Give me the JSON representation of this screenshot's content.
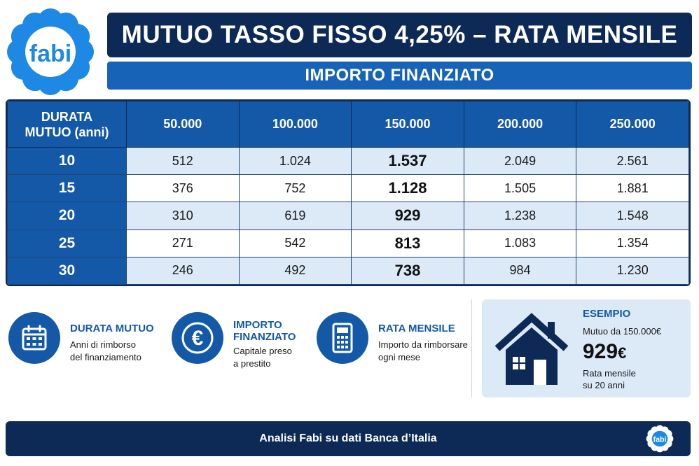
{
  "logo": {
    "text": "fabi",
    "icon": "fabi-flower-logo",
    "color": "#1e88e5"
  },
  "title": "MUTUO TASSO FISSO 4,25% – RATA MENSILE",
  "subtitle": "IMPORTO FINANZIATO",
  "table": {
    "corner_line1": "DURATA",
    "corner_line2": "MUTUO (anni)",
    "columns": [
      "50.000",
      "100.000",
      "150.000",
      "200.000",
      "250.000"
    ],
    "rows": [
      {
        "durata": "10",
        "values": [
          "512",
          "1.024",
          "1.537",
          "2.049",
          "2.561"
        ]
      },
      {
        "durata": "15",
        "values": [
          "376",
          "752",
          "1.128",
          "1.505",
          "1.881"
        ]
      },
      {
        "durata": "20",
        "values": [
          "310",
          "619",
          "929",
          "1.238",
          "1.548"
        ]
      },
      {
        "durata": "25",
        "values": [
          "271",
          "542",
          "813",
          "1.083",
          "1.354"
        ]
      },
      {
        "durata": "30",
        "values": [
          "246",
          "492",
          "738",
          "984",
          "1.230"
        ]
      }
    ],
    "highlight_column": "150.000"
  },
  "legend": [
    {
      "icon": "calendar-icon",
      "title": "DURATA MUTUO",
      "desc_line1": "Anni di rimborso",
      "desc_line2": "del finanziamento"
    },
    {
      "icon": "euro-icon",
      "title_line1": "IMPORTO",
      "title_line2": "FINANZIATO",
      "desc_line1": "Capitale preso",
      "desc_line2": "a prestito"
    },
    {
      "icon": "calculator-icon",
      "title": "RATA MENSILE",
      "desc_line1": "Importo da rimborsare",
      "desc_line2": "ogni mese"
    }
  ],
  "example": {
    "icon": "house-icon",
    "title": "ESEMPIO",
    "line": "Mutuo da 150.000€",
    "amount": "929",
    "currency": "€",
    "caption_line1": "Rata mensile",
    "caption_line2": "su 20 anni"
  },
  "footer": {
    "text": "Analisi Fabi su dati Banca d’Italia",
    "logo_text": "fabi"
  },
  "colors": {
    "navy": "#0d2a57",
    "blue": "#1458a8",
    "light_blue": "#dceaf8",
    "logo_blue": "#1e88e5"
  }
}
